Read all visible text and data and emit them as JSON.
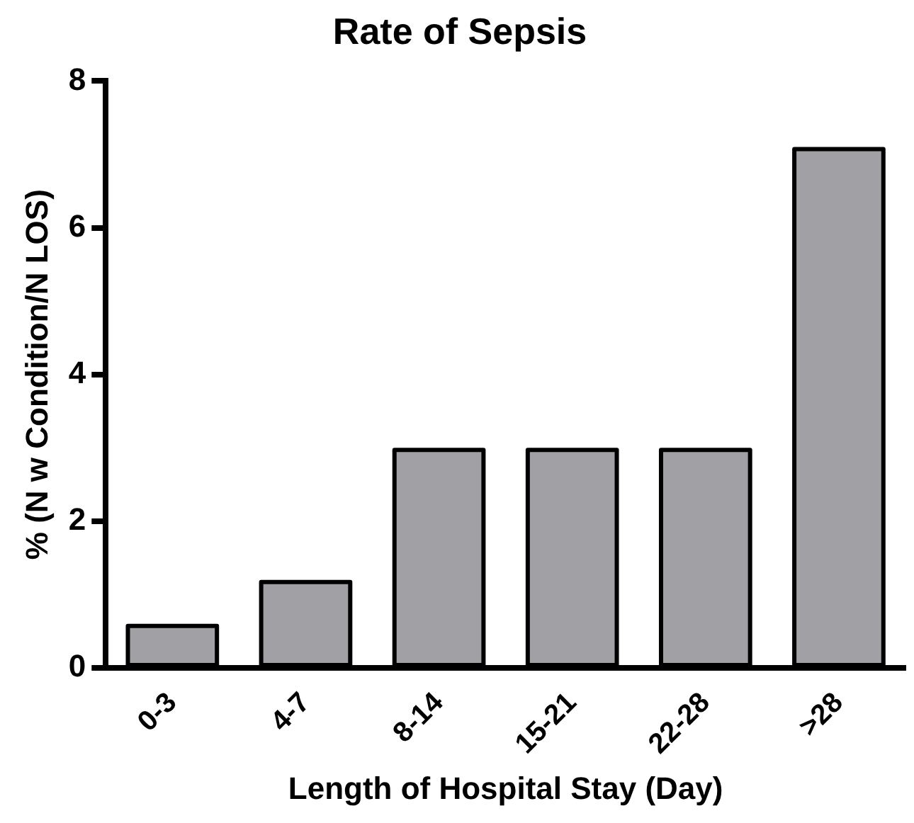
{
  "chart_data": {
    "type": "bar",
    "title": "Rate of Sepsis",
    "xlabel": "Length of Hospital Stay (Day)",
    "ylabel": "% (N w Condition/N LOS)",
    "categories": [
      "0-3",
      "4-7",
      "8-14",
      "15-21",
      "22-28",
      ">28"
    ],
    "values": [
      0.6,
      1.2,
      3.0,
      3.0,
      3.0,
      7.1
    ],
    "color": "#a1a0a5",
    "ylim": [
      0,
      8
    ],
    "yticks": [
      0,
      2,
      4,
      6,
      8
    ],
    "grid": false,
    "legend": false
  }
}
